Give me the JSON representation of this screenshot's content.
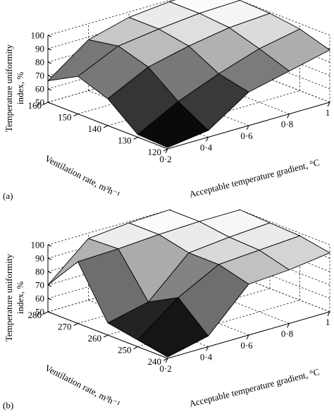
{
  "chart_data": [
    {
      "type": "surface",
      "panel_label": "(a)",
      "zlabel_line1": "Temperature uniformity",
      "zlabel_line2": "index, %",
      "xlabel": "Acceptable temperature gradient, °C",
      "ylabel": "Ventilation rate, m³h⁻¹",
      "x": [
        0.2,
        0.4,
        0.6,
        0.8,
        1.0
      ],
      "y": [
        120,
        130,
        140,
        150,
        160
      ],
      "x_ticks": [
        "0·2",
        "0·4",
        "0·6",
        "0·8",
        "1"
      ],
      "y_ticks": [
        "120",
        "130",
        "140",
        "150",
        "160"
      ],
      "z_ticks": [
        "50",
        "60",
        "70",
        "80",
        "90",
        "100"
      ],
      "zlim": [
        50,
        100
      ],
      "z": [
        [
          51,
          55,
          75,
          82,
          89
        ],
        [
          52,
          68,
          80,
          90,
          96
        ],
        [
          70,
          85,
          92,
          97,
          99
        ],
        [
          78,
          92,
          96,
          99,
          100
        ],
        [
          66,
          88,
          96,
          99,
          100
        ]
      ],
      "grid": true
    },
    {
      "type": "surface",
      "panel_label": "(b)",
      "zlabel_line1": "Temperature uniformity",
      "zlabel_line2": "index, %",
      "xlabel": "Acceptable temperature gradient, °C",
      "ylabel": "Ventilation rate, m³h⁻¹",
      "x": [
        0.2,
        0.4,
        0.6,
        0.8,
        1.0
      ],
      "y": [
        240,
        250,
        260,
        270,
        280
      ],
      "x_ticks": [
        "0·2",
        "0·4",
        "0·6",
        "0·8",
        "1"
      ],
      "y_ticks": [
        "240",
        "250",
        "260",
        "270",
        "280"
      ],
      "z_ticks": [
        "50",
        "60",
        "70",
        "80",
        "90",
        "100"
      ],
      "zlim": [
        50,
        100
      ],
      "z": [
        [
          51,
          58,
          88,
          90,
          94
        ],
        [
          55,
          78,
          94,
          96,
          98
        ],
        [
          59,
          66,
          94,
          97,
          99
        ],
        [
          96,
          97,
          99,
          100,
          100
        ],
        [
          70,
          96,
          99,
          100,
          100
        ]
      ],
      "grid": true
    }
  ]
}
